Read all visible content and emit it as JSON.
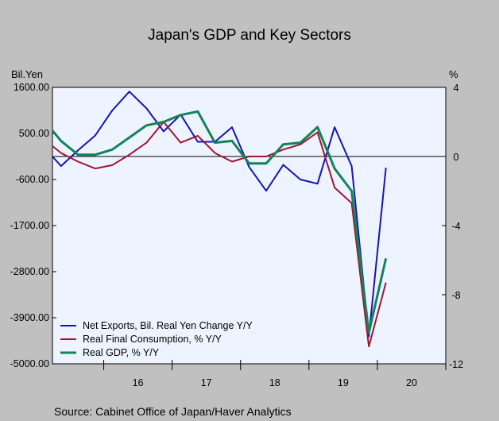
{
  "chart_data": {
    "type": "line",
    "title": "Japan's GDP and Key Sectors",
    "left_axis_unit": "Bil.Yen",
    "right_axis_unit": "%",
    "left_axis": {
      "ylim": [
        -5000,
        1600
      ],
      "ticks": [
        1600,
        500,
        -600,
        -1700,
        -2800,
        -3900,
        -5000
      ],
      "tick_labels": [
        "1600.00",
        "500.00",
        "-600.00",
        "-1700.00",
        "-2800.00",
        "-3900.00",
        "-5000.00"
      ]
    },
    "right_axis": {
      "ylim": [
        -12,
        4
      ],
      "ticks": [
        4,
        0,
        -4,
        -8,
        -12
      ],
      "tick_labels": [
        "4",
        "0",
        "-4",
        "-8",
        "-12"
      ]
    },
    "x_axis": {
      "xlim": [
        2015.25,
        2021.0
      ],
      "year_labels": [
        {
          "label": "16",
          "x": 2016.5
        },
        {
          "label": "17",
          "x": 2017.5
        },
        {
          "label": "18",
          "x": 2018.5
        },
        {
          "label": "19",
          "x": 2019.5
        },
        {
          "label": "20",
          "x": 2020.5
        }
      ]
    },
    "zero_line_right_axis": 0,
    "series": [
      {
        "name": "Net Exports, Bil. Real Yen Change Y/Y",
        "color": "#1414b4",
        "axis": "left",
        "x": [
          2015.25,
          2015.375,
          2015.625,
          2015.875,
          2016.125,
          2016.375,
          2016.625,
          2016.875,
          2017.125,
          2017.375,
          2017.625,
          2017.875,
          2018.125,
          2018.375,
          2018.625,
          2018.875,
          2019.125,
          2019.375,
          2019.625,
          2019.875,
          2020.125,
          2020.375,
          2020.625,
          2020.875
        ],
        "y": [
          -50,
          -280,
          100,
          450,
          1050,
          1500,
          1100,
          550,
          950,
          300,
          300,
          650,
          -300,
          -870,
          -250,
          -600,
          -700,
          650,
          -280,
          -4350,
          -320,
          null,
          null,
          null
        ]
      },
      {
        "name": "Real Final Consumption, % Y/Y",
        "color": "#a01432",
        "axis": "right",
        "x": [
          2015.25,
          2015.375,
          2015.625,
          2015.875,
          2016.125,
          2016.375,
          2016.625,
          2016.875,
          2017.125,
          2017.375,
          2017.625,
          2017.875,
          2018.125,
          2018.375,
          2018.625,
          2018.875,
          2019.125,
          2019.375,
          2019.625,
          2019.875,
          2020.125,
          2020.375
        ],
        "y": [
          0.6,
          0.2,
          -0.3,
          -0.7,
          -0.5,
          0.1,
          0.8,
          2.0,
          0.8,
          1.2,
          0.2,
          -0.3,
          0.0,
          0.0,
          0.4,
          0.7,
          1.4,
          -1.8,
          -2.7,
          -11.0,
          -7.3,
          null
        ]
      },
      {
        "name": "Real GDP, % Y/Y",
        "color": "#14825a",
        "axis": "right",
        "x": [
          2015.25,
          2015.375,
          2015.625,
          2015.875,
          2016.125,
          2016.375,
          2016.625,
          2016.875,
          2017.125,
          2017.375,
          2017.625,
          2017.875,
          2018.125,
          2018.375,
          2018.625,
          2018.875,
          2019.125,
          2019.375,
          2019.625,
          2019.875,
          2020.125
        ],
        "y": [
          1.5,
          0.9,
          0.1,
          0.1,
          0.4,
          1.1,
          1.8,
          2.0,
          2.4,
          2.6,
          0.8,
          0.9,
          -0.4,
          -0.4,
          0.7,
          0.8,
          1.7,
          -0.7,
          -2.0,
          -10.2,
          -5.9
        ]
      }
    ],
    "legend_placement": "bottom-left",
    "grid": false
  },
  "source": "Source:  Cabinet Office of Japan/Haver Analytics",
  "colors": {
    "background": "#c0c0c0",
    "plot_background": "#eef4ff"
  }
}
